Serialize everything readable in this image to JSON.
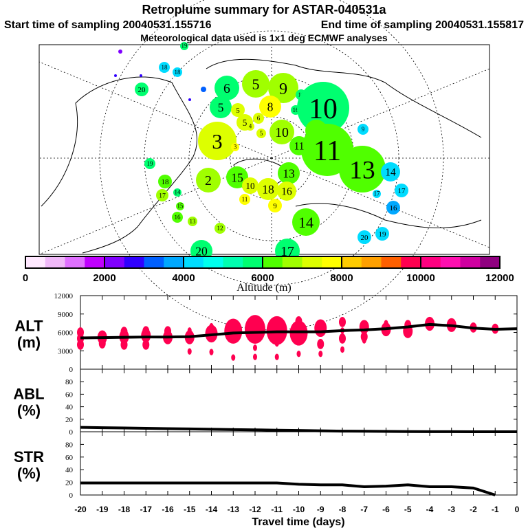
{
  "title": "Retroplume summary for ASTAR-040531a",
  "subtitle_start": "Start time of sampling 20040531.155716",
  "subtitle_end": "End time of sampling 20040531.155817",
  "subtitle_met": "Meteorological data used is 1x1 deg ECMWF analyses",
  "colorbar": {
    "label": "Altitude (m)",
    "ticks": [
      "0",
      "2000",
      "4000",
      "6000",
      "8000",
      "10000",
      "12000"
    ],
    "colors": [
      "#ffe8ff",
      "#f0b8f8",
      "#e070ff",
      "#c000ff",
      "#8000ff",
      "#3000ff",
      "#0060ff",
      "#00a8ff",
      "#00dcff",
      "#00ffee",
      "#00ffb0",
      "#00ff70",
      "#50ff00",
      "#a0ff00",
      "#ddff00",
      "#ffff00",
      "#ffcc00",
      "#ffa000",
      "#ff6000",
      "#ff0050",
      "#ff0080",
      "#ff10b0",
      "#d000a0",
      "#900080"
    ]
  },
  "map": {
    "markers": [
      "19",
      "",
      "18",
      "18",
      "20",
      "",
      "",
      "",
      "",
      "6",
      "5",
      "9",
      "5",
      "18",
      "16",
      "10",
      "8",
      "5",
      "5",
      "6",
      "9",
      "",
      "10",
      "3",
      "5",
      "3",
      "4",
      "11",
      "13",
      "11",
      "14",
      "17",
      "17",
      "16",
      "19",
      "13",
      "15",
      "2",
      "10",
      "18",
      "16",
      "11",
      "9",
      "18",
      "17",
      "14",
      "15",
      "16",
      "13",
      "12",
      "14",
      "20",
      "19",
      "20",
      "17"
    ],
    "marker_colors": [
      "#00ff70",
      "#8000ff",
      "#00dcff",
      "#00dcff",
      "#00ff70",
      "#3000ff",
      "#3000ff",
      "#0060ff",
      "#3000ff",
      "#00ff70",
      "#a0ff00",
      "#a0ff00",
      "#00ff70",
      "#00ff70",
      "#00ff70",
      "#00ff70",
      "#ffff00",
      "#ddff00",
      "#ddff00",
      "#ddff00",
      "#00dcff",
      "#50ff00",
      "#a0ff00",
      "#ddff00",
      "#ddff00",
      "#ffff00",
      "#ddff00",
      "#50ff00",
      "#50ff00",
      "#50ff00",
      "#00dcff",
      "#00dcff",
      "#00dcff",
      "#00a8ff",
      "#00ff70",
      "#50ff00",
      "#50ff00",
      "#a0ff00",
      "#ddff00",
      "#ddff00",
      "#ddff00",
      "#ffff00",
      "#ffff00",
      "#50ff00",
      "#a0ff00",
      "#00ff70",
      "#50ff00",
      "#50ff00",
      "#a0ff00",
      "#a0ff00",
      "#50ff00",
      "#00dcff",
      "#00dcff",
      "#00ff70",
      "#00ff70"
    ]
  },
  "chart_data": [
    {
      "type": "line",
      "panel": "ALT",
      "ylabel": "ALT (m)",
      "ylim": [
        0,
        12000
      ],
      "yticks": [
        "0",
        "3000",
        "6000",
        "9000",
        "12000"
      ],
      "x": [
        -20,
        -19,
        -18,
        -17,
        -16,
        -15,
        -14,
        -13,
        -12,
        -11,
        -10,
        -9,
        -8,
        -7,
        -6,
        -5,
        -4,
        -3,
        -2,
        -1,
        0
      ],
      "values": [
        5100,
        5150,
        5200,
        5250,
        5250,
        5300,
        5600,
        5900,
        6000,
        6100,
        6100,
        6100,
        6300,
        6400,
        6600,
        6900,
        7300,
        7100,
        6700,
        6500,
        6600
      ],
      "clusters": [
        {
          "day": -20,
          "alt": [
            6000,
            5000,
            4000
          ],
          "size": [
            2,
            2,
            2
          ]
        },
        {
          "day": -19,
          "alt": [
            5200,
            4200
          ],
          "size": [
            3,
            2
          ]
        },
        {
          "day": -18,
          "alt": [
            6100,
            5300,
            4000
          ],
          "size": [
            2,
            3,
            2
          ]
        },
        {
          "day": -17,
          "alt": [
            6200,
            5500,
            4000
          ],
          "size": [
            2,
            3,
            2
          ]
        },
        {
          "day": -16,
          "alt": [
            6200,
            5200
          ],
          "size": [
            2,
            3
          ]
        },
        {
          "day": -15,
          "alt": [
            6300,
            5200,
            2900
          ],
          "size": [
            1,
            3,
            1
          ]
        },
        {
          "day": -14,
          "alt": [
            7000,
            5800,
            2800
          ],
          "size": [
            1,
            4,
            1
          ]
        },
        {
          "day": -13,
          "alt": [
            6200,
            1900
          ],
          "size": [
            6,
            1
          ]
        },
        {
          "day": -12,
          "alt": [
            6500,
            3500,
            2000
          ],
          "size": [
            7,
            1,
            1
          ]
        },
        {
          "day": -11,
          "alt": [
            6300,
            4200,
            2000
          ],
          "size": [
            7,
            1,
            1
          ]
        },
        {
          "day": -10,
          "alt": [
            7800,
            5900,
            2500
          ],
          "size": [
            2,
            6,
            1
          ]
        },
        {
          "day": -9,
          "alt": [
            6700,
            4100,
            2500
          ],
          "size": [
            4,
            2,
            1
          ]
        },
        {
          "day": -8,
          "alt": [
            7700,
            6300,
            5000,
            3200
          ],
          "size": [
            2,
            1,
            2,
            1
          ]
        },
        {
          "day": -7,
          "alt": [
            6900,
            5300,
            4700
          ],
          "size": [
            3,
            2,
            1
          ]
        },
        {
          "day": -6,
          "alt": [
            7500,
            6500
          ],
          "size": [
            1,
            3
          ]
        },
        {
          "day": -5,
          "alt": [
            7200,
            6200
          ],
          "size": [
            2,
            3
          ]
        },
        {
          "day": -4,
          "alt": [
            7400
          ],
          "size": [
            3
          ]
        },
        {
          "day": -3,
          "alt": [
            7200
          ],
          "size": [
            3
          ]
        },
        {
          "day": -2,
          "alt": [
            6800
          ],
          "size": [
            2
          ]
        },
        {
          "day": -1,
          "alt": [
            6600
          ],
          "size": [
            2
          ]
        }
      ]
    },
    {
      "type": "line",
      "panel": "ABL",
      "ylabel": "ABL (%)",
      "ylim": [
        0,
        100
      ],
      "yticks": [
        "0",
        "20",
        "40",
        "60",
        "80"
      ],
      "x": [
        -20,
        -19,
        -18,
        -17,
        -16,
        -15,
        -14,
        -13,
        -12,
        -11,
        -10,
        -9,
        -8,
        -7,
        -6,
        -5,
        -4,
        -3,
        -2,
        -1,
        0
      ],
      "values": [
        7,
        6.5,
        6,
        5.5,
        5,
        4.5,
        4,
        3.5,
        3,
        2.5,
        2,
        1.5,
        1,
        0.8,
        0.5,
        0.3,
        0.2,
        0.1,
        0,
        0,
        0
      ]
    },
    {
      "type": "line",
      "panel": "STR",
      "ylabel": "STR (%)",
      "ylim": [
        0,
        100
      ],
      "yticks": [
        "0",
        "20",
        "40",
        "60",
        "80"
      ],
      "x": [
        -20,
        -19,
        -18,
        -17,
        -16,
        -15,
        -14,
        -13,
        -12,
        -11,
        -10,
        -9,
        -8,
        -7,
        -6,
        -5,
        -4,
        -3,
        -2,
        -1
      ],
      "values": [
        19,
        19,
        19,
        19,
        19,
        19,
        19,
        19,
        19,
        19,
        17,
        16,
        16,
        13,
        14,
        16,
        13,
        13,
        11,
        0
      ]
    }
  ],
  "xaxis": {
    "label": "Travel time (days)",
    "ticks": [
      "-20",
      "-19",
      "-18",
      "-17",
      "-16",
      "-15",
      "-14",
      "-13",
      "-12",
      "-11",
      "-10",
      "-9",
      "-8",
      "-7",
      "-6",
      "-5",
      "-4",
      "-3",
      "-2",
      "-1",
      "0"
    ]
  },
  "colors": {
    "particles": "#ff0050",
    "line": "#000000"
  }
}
